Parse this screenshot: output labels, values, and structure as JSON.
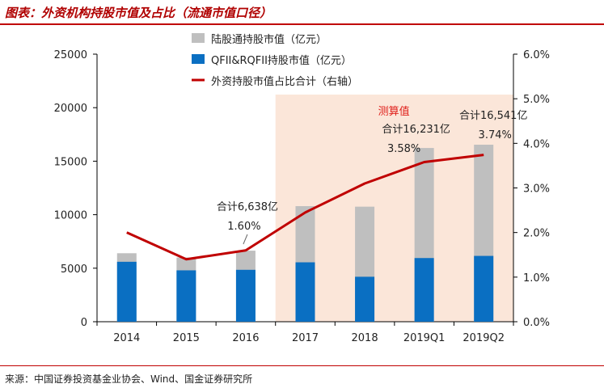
{
  "title": "图表：外资机构持股市值及占比（流通市值口径）",
  "source": "来源：中国证券投资基金业协会、Wind、国金证券研究所",
  "colors": {
    "total_bar": "#bfbfbf",
    "qfii_bar": "#0a6fc2",
    "ratio_line": "#c00000",
    "shade": "#fbe6d9",
    "annotation_red": "#e0201b"
  },
  "chart_data": {
    "type": "bar+line",
    "categories": [
      "2014",
      "2015",
      "2016",
      "2017",
      "2018",
      "2019Q1",
      "2019Q2"
    ],
    "series": [
      {
        "name": "陆股通持股市值（亿元）",
        "type": "bar",
        "axis": "left",
        "values": [
          6400,
          6000,
          6638,
          10800,
          10750,
          16231,
          16541
        ]
      },
      {
        "name": "QFII&RQFII持股市值（亿元）",
        "type": "bar",
        "axis": "left",
        "values": [
          5600,
          4800,
          4850,
          5550,
          4200,
          5950,
          6150
        ]
      },
      {
        "name": "外资持股市值占比合计（右轴）",
        "type": "line",
        "axis": "right",
        "values": [
          2.0,
          1.4,
          1.6,
          2.45,
          3.1,
          3.58,
          3.74
        ]
      }
    ],
    "y_left": {
      "min": 0,
      "max": 25000,
      "ticks": [
        "0",
        "5000",
        "10000",
        "15000",
        "20000",
        "25000"
      ]
    },
    "y_right": {
      "min": 0,
      "max": 6,
      "ticks": [
        "0.0%",
        "1.0%",
        "2.0%",
        "3.0%",
        "4.0%",
        "5.0%",
        "6.0%"
      ]
    },
    "shaded_from_category": "2017",
    "annotations": [
      {
        "category": "2016",
        "lines": [
          "合计6,638亿",
          "1.60%"
        ]
      },
      {
        "category": "2019Q1",
        "lines": [
          "合计16,231亿",
          "3.58%"
        ]
      },
      {
        "category": "2019Q2",
        "lines": [
          "合计16,541亿",
          "3.74%"
        ]
      },
      {
        "category": "2019Q1",
        "lines": [
          "测算值"
        ],
        "color": "red"
      }
    ],
    "legend_position": "top-center",
    "grid": false
  }
}
